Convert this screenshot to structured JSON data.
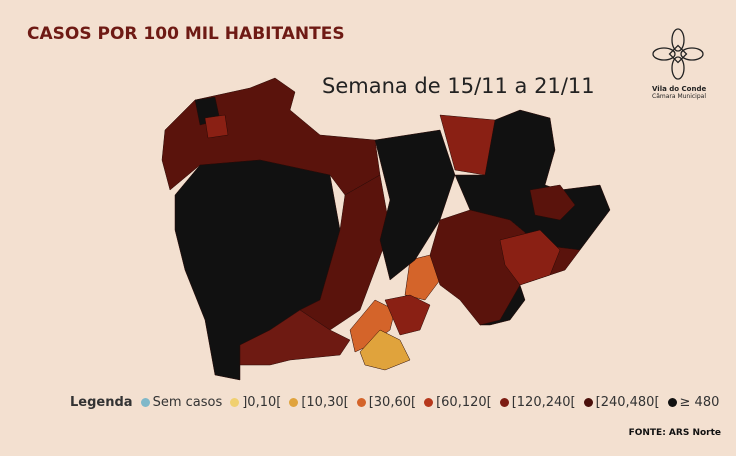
{
  "header": {
    "title": "CASOS POR 100 MIL HABITANTES",
    "subtitle": "Semana de 15/11 a 21/11"
  },
  "logo": {
    "name": "Vila do Conde",
    "subtitle": "Câmara Municipal"
  },
  "legend": {
    "title": "Legenda",
    "items": [
      {
        "label": "Sem casos",
        "color": "#7fb8c9"
      },
      {
        "label": "]0,10[",
        "color": "#f0d070"
      },
      {
        "label": "[10,30[",
        "color": "#e0a33c"
      },
      {
        "label": "[30,60[",
        "color": "#d4642a"
      },
      {
        "label": "[60,120[",
        "color": "#b6381c"
      },
      {
        "label": "[120,240[",
        "color": "#7c1c12"
      },
      {
        "label": "[240,480[",
        "color": "#4a0f0a"
      },
      {
        "label": "≥ 480",
        "color": "#111111"
      }
    ]
  },
  "source": "FONTE: ARS Norte"
}
